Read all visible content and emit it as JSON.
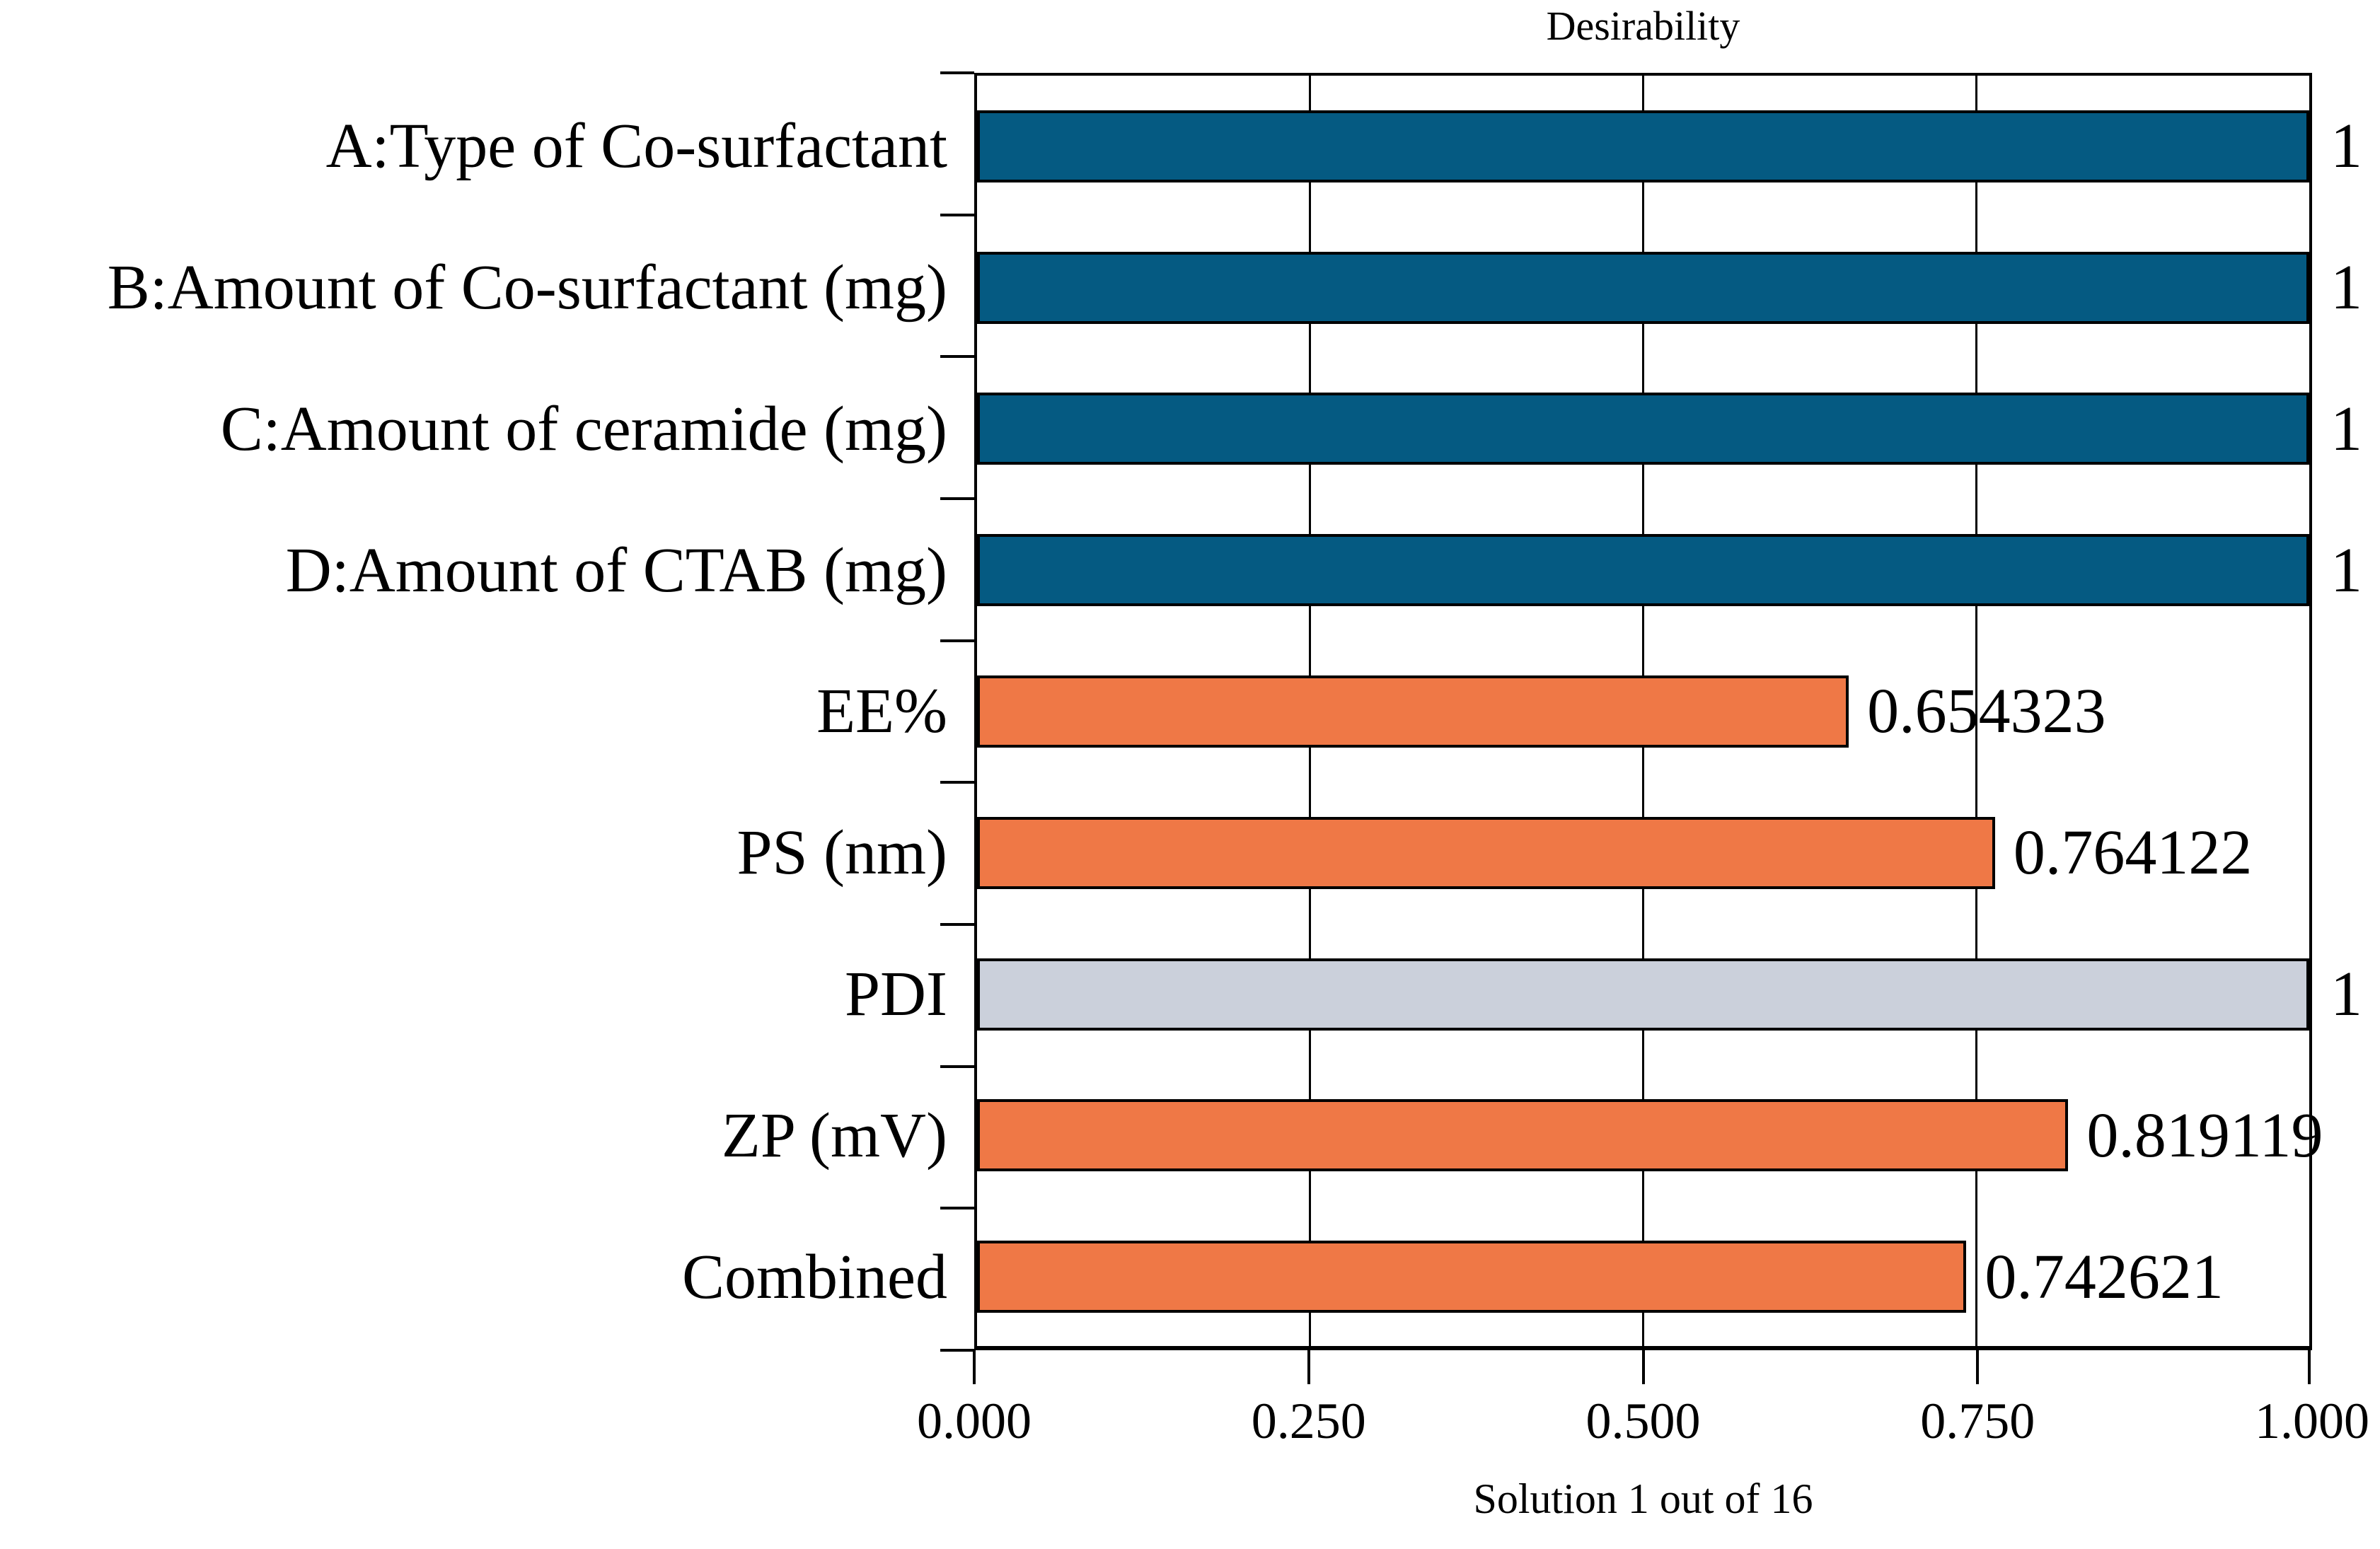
{
  "chart_data": {
    "type": "bar",
    "orientation": "horizontal",
    "title": "Desirability",
    "caption": "Solution 1 out of 16",
    "categories": [
      "A:Type of Co-surfactant",
      "B:Amount of Co-surfactant (mg)",
      "C:Amount of ceramide (mg)",
      "D:Amount of CTAB (mg)",
      "EE%",
      "PS (nm)",
      "PDI",
      "ZP (mV)",
      "Combined"
    ],
    "values": [
      1,
      1,
      1,
      1,
      0.654323,
      0.764122,
      1,
      0.819119,
      0.742621
    ],
    "value_labels": [
      "1",
      "1",
      "1",
      "1",
      "0.654323",
      "0.764122",
      "1",
      "0.819119",
      "0.742621"
    ],
    "bar_colors": [
      "#055A82",
      "#055A82",
      "#055A82",
      "#055A82",
      "#EF7846",
      "#EF7846",
      "#CBD0DB",
      "#EF7846",
      "#EF7846"
    ],
    "x_ticks": [
      "0.000",
      "0.250",
      "0.500",
      "0.750",
      "1.000"
    ],
    "xlim": [
      0,
      1
    ],
    "grid": true,
    "legend": "none",
    "colors": {
      "factor_bar": "#055A82",
      "response_bar": "#EF7846",
      "neutral_bar": "#CBD0DB",
      "axis_line": "#000000",
      "background": "#FFFFFF",
      "text": "#000000"
    }
  }
}
